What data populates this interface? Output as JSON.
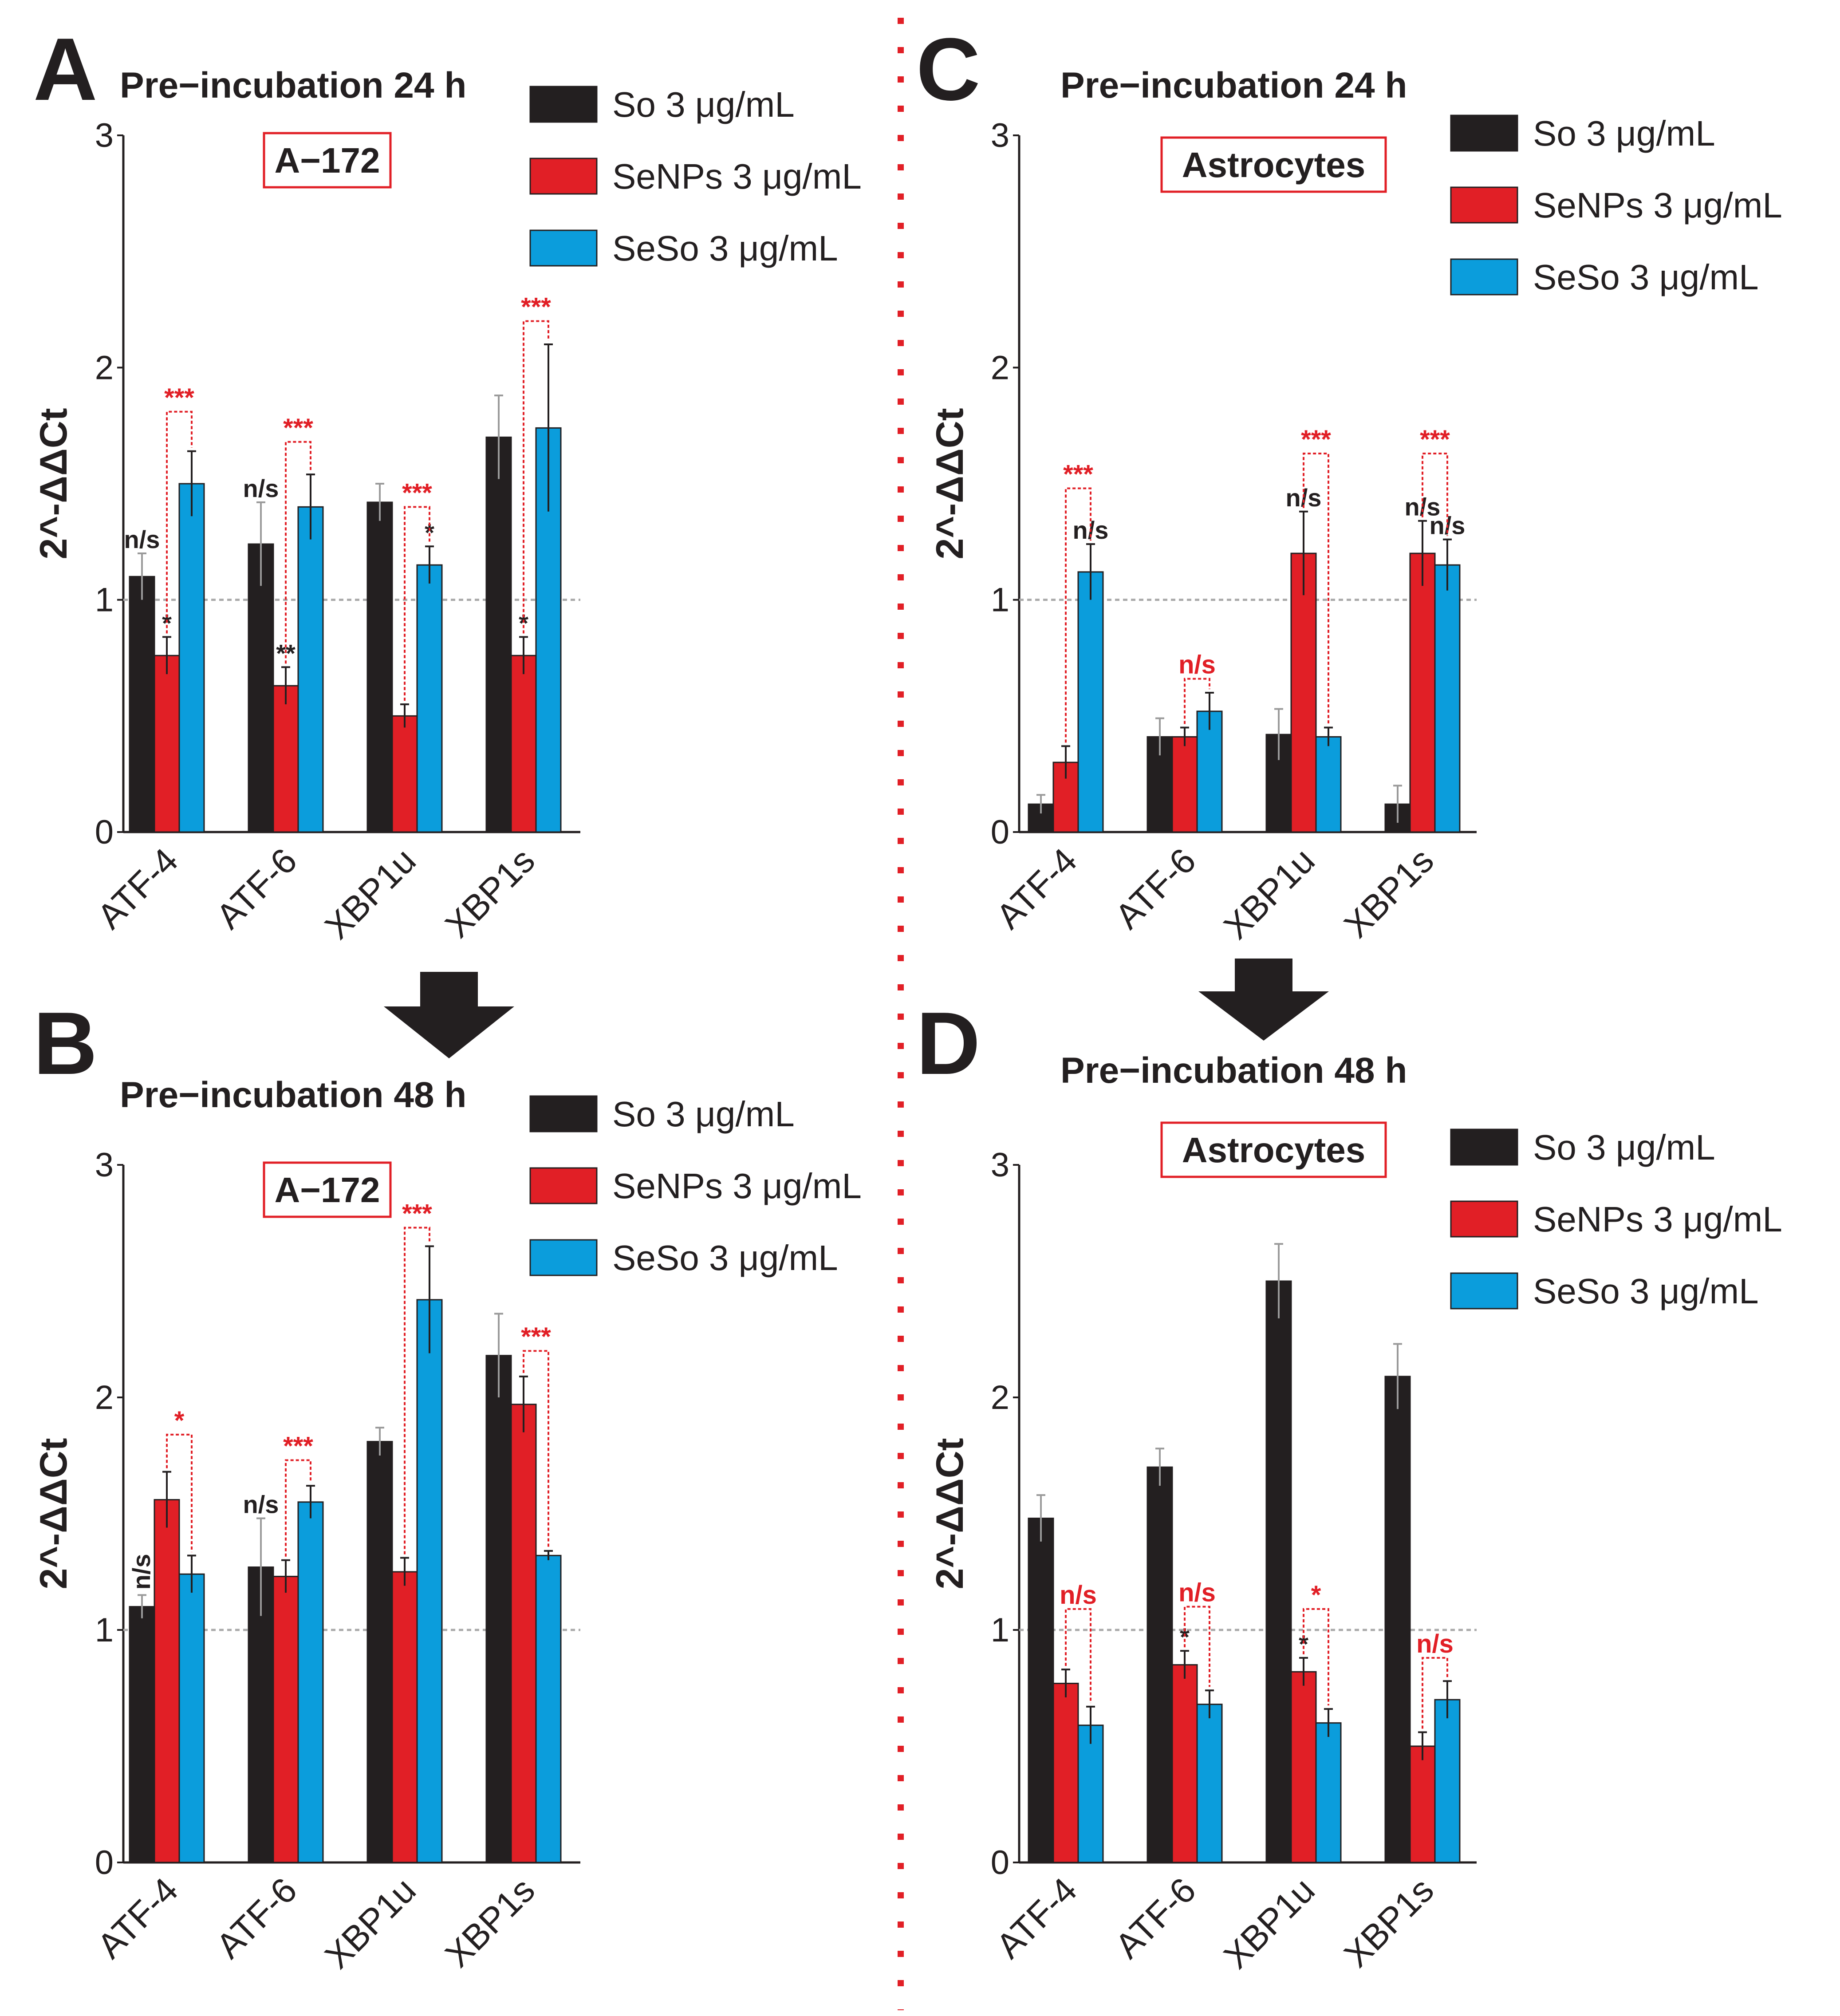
{
  "colors": {
    "So": "#231f20",
    "SeNPs": "#e11f26",
    "SeSo": "#0b9ddc",
    "divider": "#e11f26",
    "baseline": "#aaaaaa",
    "text": "#231f20",
    "sig_red": "#e11f26",
    "sig_black": "#231f20"
  },
  "chart_data": [
    {
      "panel": "A",
      "type": "bar",
      "title": "Pre−incubation 24 h",
      "cell_label": "A−172",
      "xlabel": "",
      "ylabel": "2^-ΔΔCt",
      "ylim": [
        0,
        3
      ],
      "yticks": [
        "0",
        "1",
        "2",
        "3"
      ],
      "reference_line": 1,
      "categories": [
        "ATF-4",
        "ATF-6",
        "XBP1u",
        "XBP1s"
      ],
      "legend": [
        "So 3 μg/mL",
        "SeNPs 3 μg/mL",
        "SeSo 3 μg/mL"
      ],
      "series": [
        {
          "name": "So 3 μg/mL",
          "values": [
            1.1,
            1.24,
            1.42,
            1.7
          ],
          "errors": [
            0.1,
            0.18,
            0.08,
            0.18
          ]
        },
        {
          "name": "SeNPs 3 μg/mL",
          "values": [
            0.76,
            0.63,
            0.5,
            0.76
          ],
          "errors": [
            0.08,
            0.08,
            0.05,
            0.08
          ]
        },
        {
          "name": "SeSo 3 μg/mL",
          "values": [
            1.5,
            1.4,
            1.15,
            1.74
          ],
          "errors": [
            0.14,
            0.14,
            0.08,
            0.36
          ]
        }
      ],
      "annotations": [
        {
          "text": "n/s",
          "cat": 0,
          "series": 0,
          "color": "black"
        },
        {
          "text": "*",
          "cat": 0,
          "series": 1,
          "color": "black"
        },
        {
          "text": "***",
          "cat": 0,
          "from": 1,
          "to": 2,
          "level": 1.81,
          "color": "red"
        },
        {
          "text": "n/s",
          "cat": 1,
          "series": 0,
          "color": "black"
        },
        {
          "text": "**",
          "cat": 1,
          "series": 1,
          "color": "black"
        },
        {
          "text": "***",
          "cat": 1,
          "from": 1,
          "to": 2,
          "level": 1.68,
          "color": "red"
        },
        {
          "text": "*",
          "cat": 2,
          "series": 2,
          "color": "black"
        },
        {
          "text": "***",
          "cat": 2,
          "from": 1,
          "to": 2,
          "level": 1.4,
          "color": "red"
        },
        {
          "text": "*",
          "cat": 3,
          "series": 1,
          "color": "black"
        },
        {
          "text": "***",
          "cat": 3,
          "from": 1,
          "to": 2,
          "level": 2.2,
          "color": "red"
        }
      ]
    },
    {
      "panel": "B",
      "type": "bar",
      "title": "Pre−incubation 48 h",
      "cell_label": "A−172",
      "xlabel": "",
      "ylabel": "2^-ΔΔCt",
      "ylim": [
        0,
        3
      ],
      "yticks": [
        "0",
        "1",
        "2",
        "3"
      ],
      "reference_line": 1,
      "categories": [
        "ATF-4",
        "ATF-6",
        "XBP1u",
        "XBP1s"
      ],
      "legend": [
        "So 3 μg/mL",
        "SeNPs 3 μg/mL",
        "SeSo 3 μg/mL"
      ],
      "series": [
        {
          "name": "So 3 μg/mL",
          "values": [
            1.1,
            1.27,
            1.81,
            2.18
          ],
          "errors": [
            0.05,
            0.21,
            0.06,
            0.18
          ]
        },
        {
          "name": "SeNPs 3 μg/mL",
          "values": [
            1.56,
            1.23,
            1.25,
            1.97
          ],
          "errors": [
            0.12,
            0.07,
            0.06,
            0.12
          ]
        },
        {
          "name": "SeSo 3 μg/mL",
          "values": [
            1.24,
            1.55,
            2.42,
            1.32
          ],
          "errors": [
            0.08,
            0.07,
            0.23,
            0.02
          ]
        }
      ],
      "annotations": [
        {
          "text": "n/s",
          "cat": 0,
          "series": 0,
          "color": "black",
          "rotated": true
        },
        {
          "text": "*",
          "cat": 0,
          "from": 1,
          "to": 2,
          "level": 1.84,
          "color": "red"
        },
        {
          "text": "n/s",
          "cat": 1,
          "series": 0,
          "color": "black"
        },
        {
          "text": "***",
          "cat": 1,
          "from": 1,
          "to": 2,
          "level": 1.73,
          "color": "red"
        },
        {
          "text": "***",
          "cat": 2,
          "from": 1,
          "to": 2,
          "level": 2.73,
          "color": "red"
        },
        {
          "text": "***",
          "cat": 3,
          "from": 1,
          "to": 2,
          "level": 2.2,
          "color": "red"
        }
      ]
    },
    {
      "panel": "C",
      "type": "bar",
      "title": "Pre−incubation 24 h",
      "cell_label": "Astrocytes",
      "xlabel": "",
      "ylabel": "2^-ΔΔCt",
      "ylim": [
        0,
        3
      ],
      "yticks": [
        "0",
        "1",
        "2",
        "3"
      ],
      "reference_line": 1,
      "categories": [
        "ATF-4",
        "ATF-6",
        "XBP1u",
        "XBP1s"
      ],
      "legend": [
        "So 3 μg/mL",
        "SeNPs 3 μg/mL",
        "SeSo 3 μg/mL"
      ],
      "series": [
        {
          "name": "So 3 μg/mL",
          "values": [
            0.12,
            0.41,
            0.42,
            0.12
          ],
          "errors": [
            0.04,
            0.08,
            0.11,
            0.08
          ]
        },
        {
          "name": "SeNPs 3 μg/mL",
          "values": [
            0.3,
            0.41,
            1.2,
            1.2
          ],
          "errors": [
            0.07,
            0.04,
            0.18,
            0.14
          ]
        },
        {
          "name": "SeSo 3 μg/mL",
          "values": [
            1.12,
            0.52,
            0.41,
            1.15
          ],
          "errors": [
            0.12,
            0.08,
            0.04,
            0.11
          ]
        }
      ],
      "annotations": [
        {
          "text": "n/s",
          "cat": 0,
          "series": 2,
          "color": "black"
        },
        {
          "text": "***",
          "cat": 0,
          "from": 1,
          "to": 2,
          "level": 1.48,
          "color": "red"
        },
        {
          "text": "n/s",
          "cat": 1,
          "from": 1,
          "to": 2,
          "level": 0.66,
          "color": "red"
        },
        {
          "text": "n/s",
          "cat": 2,
          "series": 1,
          "color": "black"
        },
        {
          "text": "***",
          "cat": 2,
          "from": 1,
          "to": 2,
          "level": 1.63,
          "color": "red"
        },
        {
          "text": "n/s",
          "cat": 3,
          "series": 1,
          "color": "black"
        },
        {
          "text": "n/s",
          "cat": 3,
          "series": 2,
          "color": "black"
        },
        {
          "text": "***",
          "cat": 3,
          "from": 1,
          "to": 2,
          "level": 1.63,
          "color": "red"
        }
      ]
    },
    {
      "panel": "D",
      "type": "bar",
      "title": "Pre−incubation 48 h",
      "cell_label": "Astrocytes",
      "xlabel": "",
      "ylabel": "2^-ΔΔCt",
      "ylim": [
        0,
        3
      ],
      "yticks": [
        "0",
        "1",
        "2",
        "3"
      ],
      "reference_line": 1,
      "categories": [
        "ATF-4",
        "ATF-6",
        "XBP1u",
        "XBP1s"
      ],
      "legend": [
        "So 3 μg/mL",
        "SeNPs 3 μg/mL",
        "SeSo 3 μg/mL"
      ],
      "series": [
        {
          "name": "So 3 μg/mL",
          "values": [
            1.48,
            1.7,
            2.5,
            2.09
          ],
          "errors": [
            0.1,
            0.08,
            0.16,
            0.14
          ]
        },
        {
          "name": "SeNPs 3 μg/mL",
          "values": [
            0.77,
            0.85,
            0.82,
            0.5
          ],
          "errors": [
            0.06,
            0.06,
            0.06,
            0.06
          ]
        },
        {
          "name": "SeSo 3 μg/mL",
          "values": [
            0.59,
            0.68,
            0.6,
            0.7
          ],
          "errors": [
            0.08,
            0.06,
            0.06,
            0.08
          ]
        }
      ],
      "annotations": [
        {
          "text": "n/s",
          "cat": 0,
          "from": 1,
          "to": 2,
          "level": 1.09,
          "color": "red"
        },
        {
          "text": "*",
          "cat": 1,
          "series": 1,
          "color": "black"
        },
        {
          "text": "n/s",
          "cat": 1,
          "from": 1,
          "to": 2,
          "level": 1.1,
          "color": "red"
        },
        {
          "text": "*",
          "cat": 2,
          "series": 1,
          "color": "black"
        },
        {
          "text": "*",
          "cat": 2,
          "from": 1,
          "to": 2,
          "level": 1.09,
          "color": "red"
        },
        {
          "text": "n/s",
          "cat": 3,
          "from": 1,
          "to": 2,
          "level": 0.88,
          "color": "red"
        }
      ]
    }
  ]
}
